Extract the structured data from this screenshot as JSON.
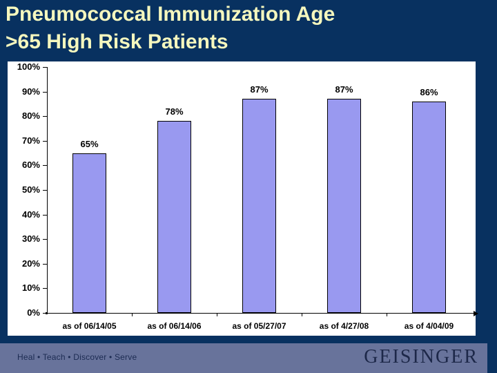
{
  "slide": {
    "title_line1": "Pneumococcal Immunization Age",
    "title_line2": ">65 High Risk Patients",
    "footer": {
      "motto": "Heal • Teach • Discover • Serve",
      "logo": "GEISINGER"
    },
    "colors": {
      "background": "#083160",
      "title_text": "#F5F7BE",
      "bar_fill": "#9999F0",
      "bar_border": "#000000",
      "footer_band": "#68739B",
      "footer_text": "#1C2B52",
      "logo_text": "#1D2849",
      "panel": "#FFFFFF"
    }
  },
  "chart_data": {
    "type": "bar",
    "title": "",
    "xlabel": "",
    "ylabel": "",
    "categories": [
      "as of 06/14/05",
      "as of 06/14/06",
      "as of 05/27/07",
      "as of 4/27/08",
      "as of 4/04/09"
    ],
    "values": [
      65,
      78,
      87,
      87,
      86
    ],
    "bar_labels": [
      "65%",
      "78%",
      "87%",
      "87%",
      "86%"
    ],
    "ylim": [
      0,
      100
    ],
    "yticks": [
      0,
      10,
      20,
      30,
      40,
      50,
      60,
      70,
      80,
      90,
      100
    ],
    "ytick_labels": [
      "0%",
      "10%",
      "20%",
      "30%",
      "40%",
      "50%",
      "60%",
      "70%",
      "80%",
      "90%",
      "100%"
    ],
    "grid": false,
    "legend_position": "none"
  }
}
